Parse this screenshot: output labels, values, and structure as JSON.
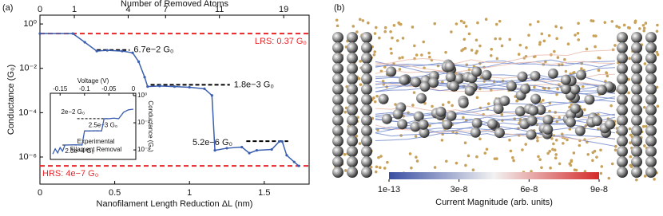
{
  "chart_data": [
    {
      "type": "line",
      "panel_label": "(a)",
      "log_y": true,
      "x_label": "Nanofilament Length Reduction ΔL (nm)",
      "y_label": "Conductance (G₀)",
      "x2_label": "Number of Removed Atoms",
      "x": [
        0,
        0.22,
        0.3,
        0.38,
        0.45,
        0.55,
        0.62,
        0.66,
        0.7,
        0.72,
        0.8,
        0.9,
        1.0,
        1.1,
        1.15,
        1.17,
        1.25,
        1.35,
        1.4,
        1.45,
        1.55,
        1.6,
        1.62,
        1.65,
        1.7,
        1.73
      ],
      "values": [
        0.37,
        0.37,
        0.15,
        0.06,
        0.065,
        0.06,
        0.05,
        0.02,
        0.004,
        0.0015,
        0.0016,
        0.0015,
        0.0014,
        0.0012,
        0.0006,
        2e-06,
        2.5e-06,
        2.8e-06,
        1.5e-06,
        2e-06,
        2.2e-06,
        5e-06,
        5e-06,
        1.2e-06,
        6e-07,
        4e-07
      ],
      "color": "#3b5fb0",
      "xlim": [
        0,
        1.8
      ],
      "xticks": [
        0,
        0.5,
        1,
        1.5
      ],
      "x2ticks": [
        {
          "value": 0,
          "label": "0"
        },
        {
          "value": 0.23,
          "label": "1"
        },
        {
          "value": 0.59,
          "label": "4"
        },
        {
          "value": 0.84,
          "label": "7"
        },
        {
          "value": 1.2,
          "label": "11"
        },
        {
          "value": 1.63,
          "label": "19"
        }
      ],
      "ylim": [
        6e-08,
        2.5
      ],
      "yticks": [
        {
          "value": 1,
          "label": "10⁰"
        },
        {
          "value": 0.01,
          "label": "10⁻²"
        },
        {
          "value": 0.0001,
          "label": "10⁻⁴"
        },
        {
          "value": 1e-06,
          "label": "10⁻⁶"
        }
      ],
      "reference_lines": [
        {
          "value": 0.37,
          "label": "LRS: 0.37 G₀",
          "color": "#e8262a"
        },
        {
          "value": 4e-07,
          "label": "HRS: 4e−7 G₀",
          "color": "#e8262a"
        }
      ],
      "annotations": [
        {
          "value": 0.067,
          "label": "6.7e−2 G₀"
        },
        {
          "value": 0.0018,
          "label": "1.8e−3 G₀"
        },
        {
          "value": 5.2e-06,
          "label": "5.2e−6 G₀"
        }
      ]
    },
    {
      "type": "line",
      "x_label": "Voltage (V)",
      "y_label": "Conductance (G₀)",
      "caption": [
        "Experimental",
        "Filament Removal"
      ],
      "x": [
        -0.165,
        -0.16,
        -0.155,
        -0.15,
        -0.145,
        -0.14,
        -0.135,
        -0.12,
        -0.105,
        -0.1,
        -0.09,
        -0.075,
        -0.065,
        -0.06,
        -0.05,
        -0.04,
        -0.03,
        -0.02,
        -0.01,
        0
      ],
      "values": [
        5e-05,
        0.00012,
        6e-05,
        0.00015,
        8e-05,
        0.00023,
        0.00023,
        0.00024,
        0.00023,
        0.0025,
        0.0025,
        0.0026,
        0.0025,
        0.02,
        0.02,
        0.022,
        0.02,
        0.06,
        0.09,
        0.1
      ],
      "color": "#3b5fb0",
      "log_y": true,
      "xlim": [
        -0.17,
        0.005
      ],
      "xticks": [
        -0.15,
        -0.1,
        -0.05,
        0
      ],
      "ylim": [
        2e-05,
        1.5
      ],
      "yticks": [
        {
          "value": 1,
          "label": "10⁰"
        },
        {
          "value": 0.01,
          "label": "10⁻²"
        },
        {
          "value": 0.0001,
          "label": "10⁻⁴"
        }
      ],
      "annotations": [
        {
          "value": 0.02,
          "label": "2e−2 G₀"
        },
        {
          "value": 0.0025,
          "label": "2.5e−3 G₀"
        },
        {
          "value": 0.00023,
          "label": "2.3e−4 G₀"
        }
      ]
    }
  ],
  "panel_b": {
    "panel_label": "(b)",
    "colorbar": {
      "title": "Current Magnitude (arb. units)",
      "lim": [
        0,
        9e-08
      ],
      "colors": [
        "#3a4fa3",
        "#f2f2f2",
        "#d42a2a"
      ],
      "ticks": [
        {
          "value": 1e-13,
          "label": "1e-13"
        },
        {
          "value": 3e-08,
          "label": "3e-8"
        },
        {
          "value": 6e-08,
          "label": "6e-8"
        },
        {
          "value": 9e-08,
          "label": "9e-8"
        }
      ]
    }
  }
}
